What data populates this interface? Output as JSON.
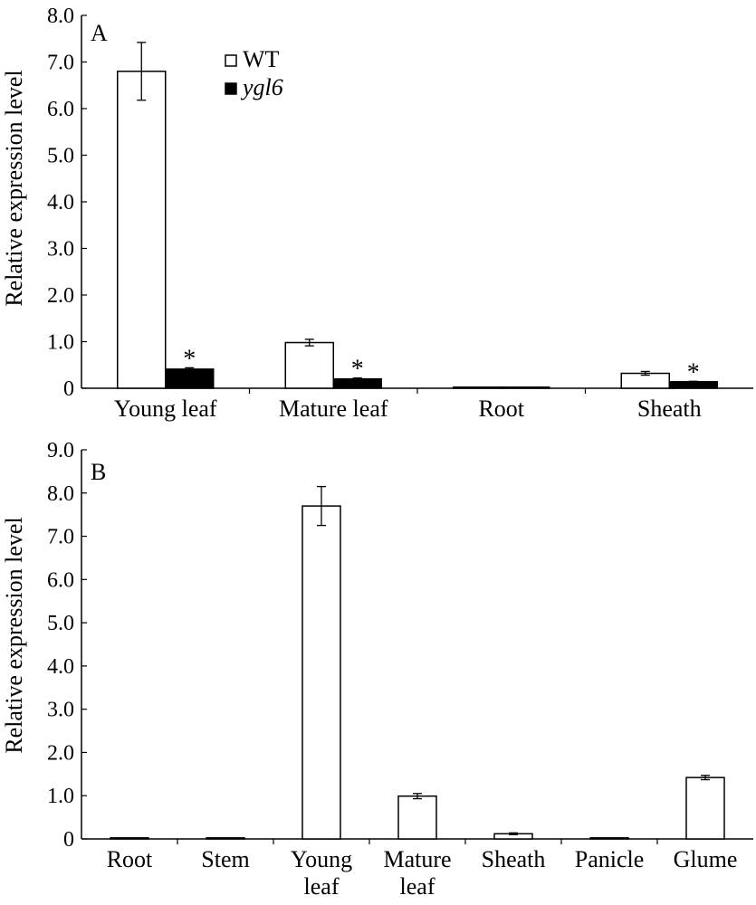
{
  "chart_data": [
    {
      "panel": "A",
      "type": "bar",
      "ylabel": "Relative expression level",
      "ylim": [
        0,
        8.0
      ],
      "yticks": [
        "0",
        "1.0",
        "2.0",
        "3.0",
        "4.0",
        "5.0",
        "6.0",
        "7.0",
        "8.0"
      ],
      "categories": [
        "Young leaf",
        "Mature leaf",
        "Root",
        "Sheath"
      ],
      "legend_position": "top-center",
      "series": [
        {
          "name": "WT",
          "color": "#ffffff",
          "values": [
            6.8,
            0.98,
            0.0,
            0.32
          ],
          "errors": [
            0.62,
            0.07,
            0.0,
            0.04
          ]
        },
        {
          "name": "ygl6",
          "color": "#000000",
          "values": [
            0.41,
            0.2,
            0.0,
            0.14
          ],
          "errors": [
            0.03,
            0.02,
            0.0,
            0.01
          ]
        }
      ],
      "significance": [
        {
          "category": "Young leaf",
          "series": "ygl6",
          "mark": "*"
        },
        {
          "category": "Mature leaf",
          "series": "ygl6",
          "mark": "*"
        },
        {
          "category": "Sheath",
          "series": "ygl6",
          "mark": "*"
        }
      ]
    },
    {
      "panel": "B",
      "type": "bar",
      "ylabel": "Relative expression level",
      "ylim": [
        0,
        9.0
      ],
      "yticks": [
        "0",
        "1.0",
        "2.0",
        "3.0",
        "4.0",
        "5.0",
        "6.0",
        "7.0",
        "8.0",
        "9.0"
      ],
      "categories": [
        "Root",
        "Stem",
        "Young leaf",
        "Mature leaf",
        "Sheath",
        "Panicle",
        "Glume"
      ],
      "category_lines": [
        [
          "Root"
        ],
        [
          "Stem"
        ],
        [
          "Young",
          "leaf"
        ],
        [
          "Mature",
          "leaf"
        ],
        [
          "Sheath"
        ],
        [
          "Panicle"
        ],
        [
          "Glume"
        ]
      ],
      "series": [
        {
          "name": "",
          "color": "#ffffff",
          "values": [
            0.0,
            0.0,
            7.7,
            0.99,
            0.12,
            0.0,
            1.42
          ],
          "errors": [
            0.0,
            0.0,
            0.45,
            0.06,
            0.02,
            0.0,
            0.05
          ]
        }
      ]
    }
  ]
}
